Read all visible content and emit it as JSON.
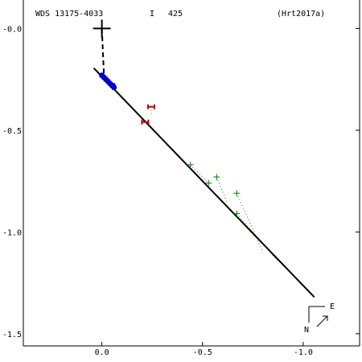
{
  "header": {
    "wds_id": "WDS 13175-4033",
    "disc": "I",
    "number": "425",
    "reference": "(Hrt2017a)"
  },
  "compass": {
    "east_label": "E",
    "north_label": "N"
  },
  "colors": {
    "axes": "#000000",
    "orbit": "#000000",
    "micrometer": "#008000",
    "speckle": "#0000cc",
    "outlier": "#cc0000"
  },
  "chart_data": {
    "type": "scatter",
    "title": "",
    "xlabel": "",
    "ylabel": "",
    "xlim": [
      0.39,
      -1.28
    ],
    "ylim": [
      -1.56,
      0.14
    ],
    "grid": false,
    "x_ticks": [
      {
        "value": -1.0,
        "label": "-1.0"
      },
      {
        "value": -0.5,
        "label": "-0.5"
      },
      {
        "value": 0.0,
        "label": "0.0"
      }
    ],
    "y_ticks": [
      {
        "value": 0.0,
        "label": "-0.0"
      },
      {
        "value": -0.5,
        "label": "-0.5"
      },
      {
        "value": -1.0,
        "label": "-1.0"
      },
      {
        "value": -1.5,
        "label": "-1.5"
      }
    ],
    "primary": {
      "x": 0.0,
      "y": 0.0
    },
    "orbit_line": [
      {
        "x": -1.055,
        "y": -1.32
      },
      {
        "x": 0.04,
        "y": -0.195
      }
    ],
    "node_line": [
      {
        "x": -0.01,
        "y": -0.22
      },
      {
        "x": 0.0,
        "y": 0.0
      }
    ],
    "series": [
      {
        "kind": "micrometer",
        "marker": "plus",
        "points": [
          {
            "x": -0.44,
            "y": -0.67
          },
          {
            "x": -0.53,
            "y": -0.76
          },
          {
            "x": -0.57,
            "y": -0.73
          },
          {
            "x": -0.67,
            "y": -0.81
          },
          {
            "x": -0.67,
            "y": -0.91
          }
        ]
      },
      {
        "kind": "outlier",
        "marker": "h-bar",
        "points": [
          {
            "x": -0.245,
            "y": -0.385
          },
          {
            "x": -0.215,
            "y": -0.46
          }
        ]
      },
      {
        "kind": "speckle",
        "marker": "dot",
        "points": [
          {
            "x": 0.0,
            "y": -0.23
          },
          {
            "x": -0.01,
            "y": -0.24
          },
          {
            "x": -0.02,
            "y": -0.25
          },
          {
            "x": -0.03,
            "y": -0.26
          },
          {
            "x": -0.04,
            "y": -0.27
          },
          {
            "x": -0.05,
            "y": -0.28
          },
          {
            "x": -0.06,
            "y": -0.29
          },
          {
            "x": -0.055,
            "y": -0.28
          }
        ]
      }
    ],
    "residual_links": [
      {
        "from": {
          "x": -0.44,
          "y": -0.67
        },
        "to": {
          "x": -0.53,
          "y": -0.76
        }
      },
      {
        "from": {
          "x": -0.57,
          "y": -0.73
        },
        "to": {
          "x": -0.62,
          "y": -0.85
        }
      },
      {
        "from": {
          "x": -0.67,
          "y": -0.81
        },
        "to": {
          "x": -0.8,
          "y": -1.1
        }
      },
      {
        "from": {
          "x": -0.67,
          "y": -0.91
        },
        "to": {
          "x": -0.88,
          "y": -1.15
        }
      },
      {
        "from": {
          "x": -0.245,
          "y": -0.385
        },
        "to": {
          "x": -0.245,
          "y": -0.42
        }
      }
    ]
  }
}
